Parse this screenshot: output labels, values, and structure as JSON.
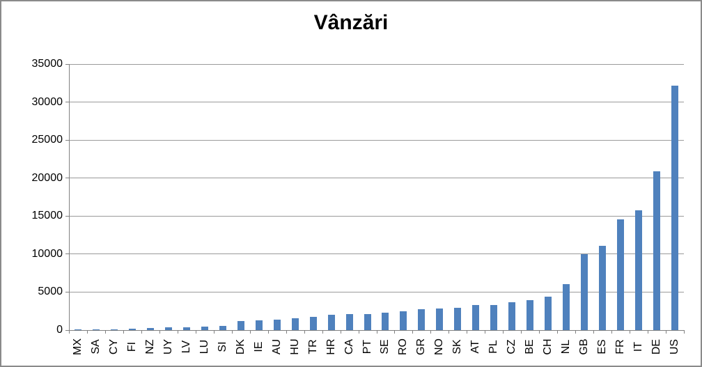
{
  "window": {
    "background_color": "#ffffff",
    "border_color": "#8a8a8a"
  },
  "chart_data": {
    "type": "bar",
    "title": "Vânzări",
    "categories": [
      "MX",
      "SA",
      "CY",
      "FI",
      "NZ",
      "UY",
      "LV",
      "LU",
      "SI",
      "DK",
      "IE",
      "AU",
      "HU",
      "TR",
      "HR",
      "CA",
      "PT",
      "SE",
      "RO",
      "GR",
      "NO",
      "SK",
      "AT",
      "PL",
      "CZ",
      "BE",
      "CH",
      "NL",
      "GB",
      "ES",
      "FR",
      "IT",
      "DE",
      "US"
    ],
    "values": [
      20,
      40,
      130,
      200,
      230,
      350,
      390,
      450,
      530,
      1150,
      1250,
      1400,
      1550,
      1700,
      2050,
      2080,
      2100,
      2300,
      2450,
      2780,
      2800,
      2900,
      3280,
      3320,
      3700,
      3950,
      4400,
      6050,
      10000,
      11100,
      14550,
      15800,
      20900,
      32150
    ],
    "xlabel": "",
    "ylabel": "",
    "ylim": [
      0,
      35000
    ],
    "yticks": [
      0,
      5000,
      10000,
      15000,
      20000,
      25000,
      30000,
      35000
    ],
    "grid": true,
    "legend": "none",
    "bar_color": "#4F81BD",
    "gridline_color": "#9a9a9a",
    "axis_color": "#808080",
    "text_color": "#000000",
    "x_label_rotation_deg": -90
  }
}
